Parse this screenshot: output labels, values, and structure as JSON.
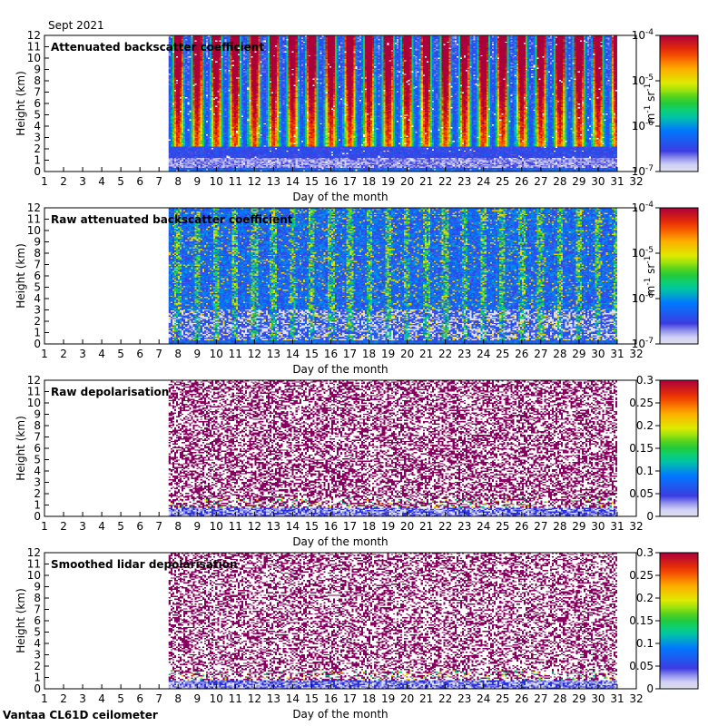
{
  "header": {
    "period": "Sept 2021"
  },
  "footer": {
    "instrument": "Vantaa CL61D ceilometer"
  },
  "chart_data": [
    {
      "type": "heatmap",
      "title": "Attenuated backscatter coefficient",
      "xlabel": "Day of the month",
      "ylabel": "Height (km)",
      "xlim": [
        1,
        32
      ],
      "ylim": [
        0,
        12
      ],
      "xticks": [
        1,
        2,
        3,
        4,
        5,
        6,
        7,
        8,
        9,
        10,
        11,
        12,
        13,
        14,
        15,
        16,
        17,
        18,
        19,
        20,
        21,
        22,
        23,
        24,
        25,
        26,
        27,
        28,
        29,
        30,
        31,
        32
      ],
      "yticks": [
        0,
        1,
        2,
        3,
        4,
        5,
        6,
        7,
        8,
        9,
        10,
        11,
        12
      ],
      "data_start_day": 7.5,
      "data_end_day": 31.0,
      "colorbar": {
        "scale": "log",
        "range": [
          1e-07,
          0.0001
        ],
        "ticks": [
          {
            "base": "10",
            "exp": "-4",
            "value": 0.0001
          },
          {
            "base": "10",
            "exp": "-5",
            "value": 1e-05
          },
          {
            "base": "10",
            "exp": "-6",
            "value": 1e-06
          },
          {
            "base": "10",
            "exp": "-7",
            "value": 1e-07
          }
        ],
        "unit": {
          "a": "m",
          "a_exp": "-1",
          "b": "sr",
          "b_exp": "-1"
        }
      }
    },
    {
      "type": "heatmap",
      "title": "Raw attenuated backscatter coefficient",
      "xlabel": "Day of the month",
      "ylabel": "Height (km)",
      "xlim": [
        1,
        32
      ],
      "ylim": [
        0,
        12
      ],
      "xticks": [
        1,
        2,
        3,
        4,
        5,
        6,
        7,
        8,
        9,
        10,
        11,
        12,
        13,
        14,
        15,
        16,
        17,
        18,
        19,
        20,
        21,
        22,
        23,
        24,
        25,
        26,
        27,
        28,
        29,
        30,
        31,
        32
      ],
      "yticks": [
        0,
        1,
        2,
        3,
        4,
        5,
        6,
        7,
        8,
        9,
        10,
        11,
        12
      ],
      "data_start_day": 7.5,
      "data_end_day": 31.0,
      "colorbar": {
        "scale": "log",
        "range": [
          1e-07,
          0.0001
        ],
        "ticks": [
          {
            "base": "10",
            "exp": "-4",
            "value": 0.0001
          },
          {
            "base": "10",
            "exp": "-5",
            "value": 1e-05
          },
          {
            "base": "10",
            "exp": "-6",
            "value": 1e-06
          },
          {
            "base": "10",
            "exp": "-7",
            "value": 1e-07
          }
        ],
        "unit": {
          "a": "m",
          "a_exp": "-1",
          "b": "sr",
          "b_exp": "-1"
        }
      }
    },
    {
      "type": "heatmap",
      "title": "Raw depolarisation",
      "xlabel": "Day of the month",
      "ylabel": "Height (km)",
      "xlim": [
        1,
        32
      ],
      "ylim": [
        0,
        12
      ],
      "xticks": [
        1,
        2,
        3,
        4,
        5,
        6,
        7,
        8,
        9,
        10,
        11,
        12,
        13,
        14,
        15,
        16,
        17,
        18,
        19,
        20,
        21,
        22,
        23,
        24,
        25,
        26,
        27,
        28,
        29,
        30,
        31,
        32
      ],
      "yticks": [
        0,
        1,
        2,
        3,
        4,
        5,
        6,
        7,
        8,
        9,
        10,
        11,
        12
      ],
      "data_start_day": 7.5,
      "data_end_day": 31.0,
      "colorbar": {
        "scale": "linear",
        "range": [
          0,
          0.3
        ],
        "ticks": [
          {
            "label": "0.3",
            "value": 0.3
          },
          {
            "label": "0.25",
            "value": 0.25
          },
          {
            "label": "0.2",
            "value": 0.2
          },
          {
            "label": "0.15",
            "value": 0.15
          },
          {
            "label": "0.1",
            "value": 0.1
          },
          {
            "label": "0.05",
            "value": 0.05
          },
          {
            "label": "0",
            "value": 0
          }
        ]
      }
    },
    {
      "type": "heatmap",
      "title": "Smoothed lidar depolarisation",
      "xlabel": "Day of the month",
      "ylabel": "Height (km)",
      "xlim": [
        1,
        32
      ],
      "ylim": [
        0,
        12
      ],
      "xticks": [
        1,
        2,
        3,
        4,
        5,
        6,
        7,
        8,
        9,
        10,
        11,
        12,
        13,
        14,
        15,
        16,
        17,
        18,
        19,
        20,
        21,
        22,
        23,
        24,
        25,
        26,
        27,
        28,
        29,
        30,
        31,
        32
      ],
      "yticks": [
        0,
        1,
        2,
        3,
        4,
        5,
        6,
        7,
        8,
        9,
        10,
        11,
        12
      ],
      "data_start_day": 7.5,
      "data_end_day": 31.0,
      "colorbar": {
        "scale": "linear",
        "range": [
          0,
          0.3
        ],
        "ticks": [
          {
            "label": "0.3",
            "value": 0.3
          },
          {
            "label": "0.25",
            "value": 0.25
          },
          {
            "label": "0.2",
            "value": 0.2
          },
          {
            "label": "0.15",
            "value": 0.15
          },
          {
            "label": "0.1",
            "value": 0.1
          },
          {
            "label": "0.05",
            "value": 0.05
          },
          {
            "label": "0",
            "value": 0
          }
        ]
      }
    }
  ]
}
